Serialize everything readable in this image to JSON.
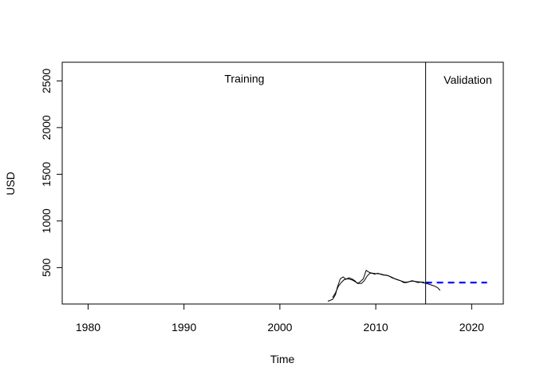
{
  "chart_data": {
    "type": "line",
    "title": "",
    "xlabel": "Time",
    "ylabel": "USD",
    "xlim": [
      1977.3,
      2023.3
    ],
    "ylim": [
      110,
      2700
    ],
    "xticks": [
      1980,
      1990,
      2000,
      2010,
      2020
    ],
    "xtick_labels": [
      "1980",
      "1990",
      "2000",
      "2010",
      "2020"
    ],
    "yticks": [
      500,
      1000,
      1500,
      2000,
      2500
    ],
    "ytick_labels": [
      "500",
      "1000",
      "1500",
      "2000",
      "2500"
    ],
    "grid": false,
    "legend": "none",
    "split_line_x": 2015.2,
    "annotations": [
      {
        "text": "Training",
        "x": 1996.3,
        "y": 2480
      },
      {
        "text": "Validation",
        "x": 2019.6,
        "y": 2470
      }
    ],
    "series": [
      {
        "style": "solid",
        "color": "#000000",
        "x": [
          2005.0,
          2005.5,
          2005.8,
          2006.0,
          2006.3,
          2006.6,
          2006.9,
          2007.2,
          2007.5,
          2007.8,
          2008.1,
          2008.4,
          2008.7,
          2009.0,
          2009.3,
          2009.6,
          2009.9,
          2010.2,
          2010.5,
          2010.8,
          2011.1,
          2011.4,
          2011.7,
          2012.0,
          2012.3,
          2012.6,
          2012.9,
          2013.2,
          2013.5,
          2013.8,
          2014.1,
          2014.4,
          2014.7,
          2015.0,
          2015.3,
          2015.6,
          2015.9,
          2016.2,
          2016.5,
          2016.7
        ],
        "y": [
          140,
          160,
          210,
          290,
          380,
          400,
          375,
          390,
          380,
          360,
          330,
          350,
          380,
          470,
          450,
          440,
          430,
          440,
          430,
          420,
          420,
          410,
          390,
          380,
          370,
          360,
          340,
          340,
          350,
          360,
          350,
          340,
          345,
          335,
          330,
          320,
          310,
          300,
          280,
          255
        ]
      },
      {
        "style": "solid",
        "color": "#000000",
        "x": [
          2005.5,
          2005.8,
          2006.1,
          2006.4,
          2006.7,
          2007.0,
          2007.3,
          2007.6,
          2007.9,
          2008.2,
          2008.5,
          2008.8,
          2009.1,
          2009.4,
          2009.7,
          2010.0,
          2010.3,
          2010.6,
          2010.9,
          2011.2,
          2011.5,
          2011.8,
          2012.1,
          2012.4,
          2012.7,
          2013.0,
          2013.3,
          2013.6,
          2013.9,
          2014.2,
          2014.5,
          2014.8,
          2015.1
        ],
        "y": [
          180,
          230,
          300,
          340,
          370,
          380,
          375,
          365,
          345,
          330,
          330,
          360,
          410,
          440,
          440,
          435,
          435,
          430,
          420,
          415,
          405,
          390,
          375,
          365,
          355,
          345,
          345,
          352,
          355,
          350,
          348,
          345,
          342
        ]
      },
      {
        "style": "dashed",
        "color": "#0000ff",
        "x": [
          2015.2,
          2021.6
        ],
        "y": [
          340,
          340
        ]
      }
    ]
  }
}
